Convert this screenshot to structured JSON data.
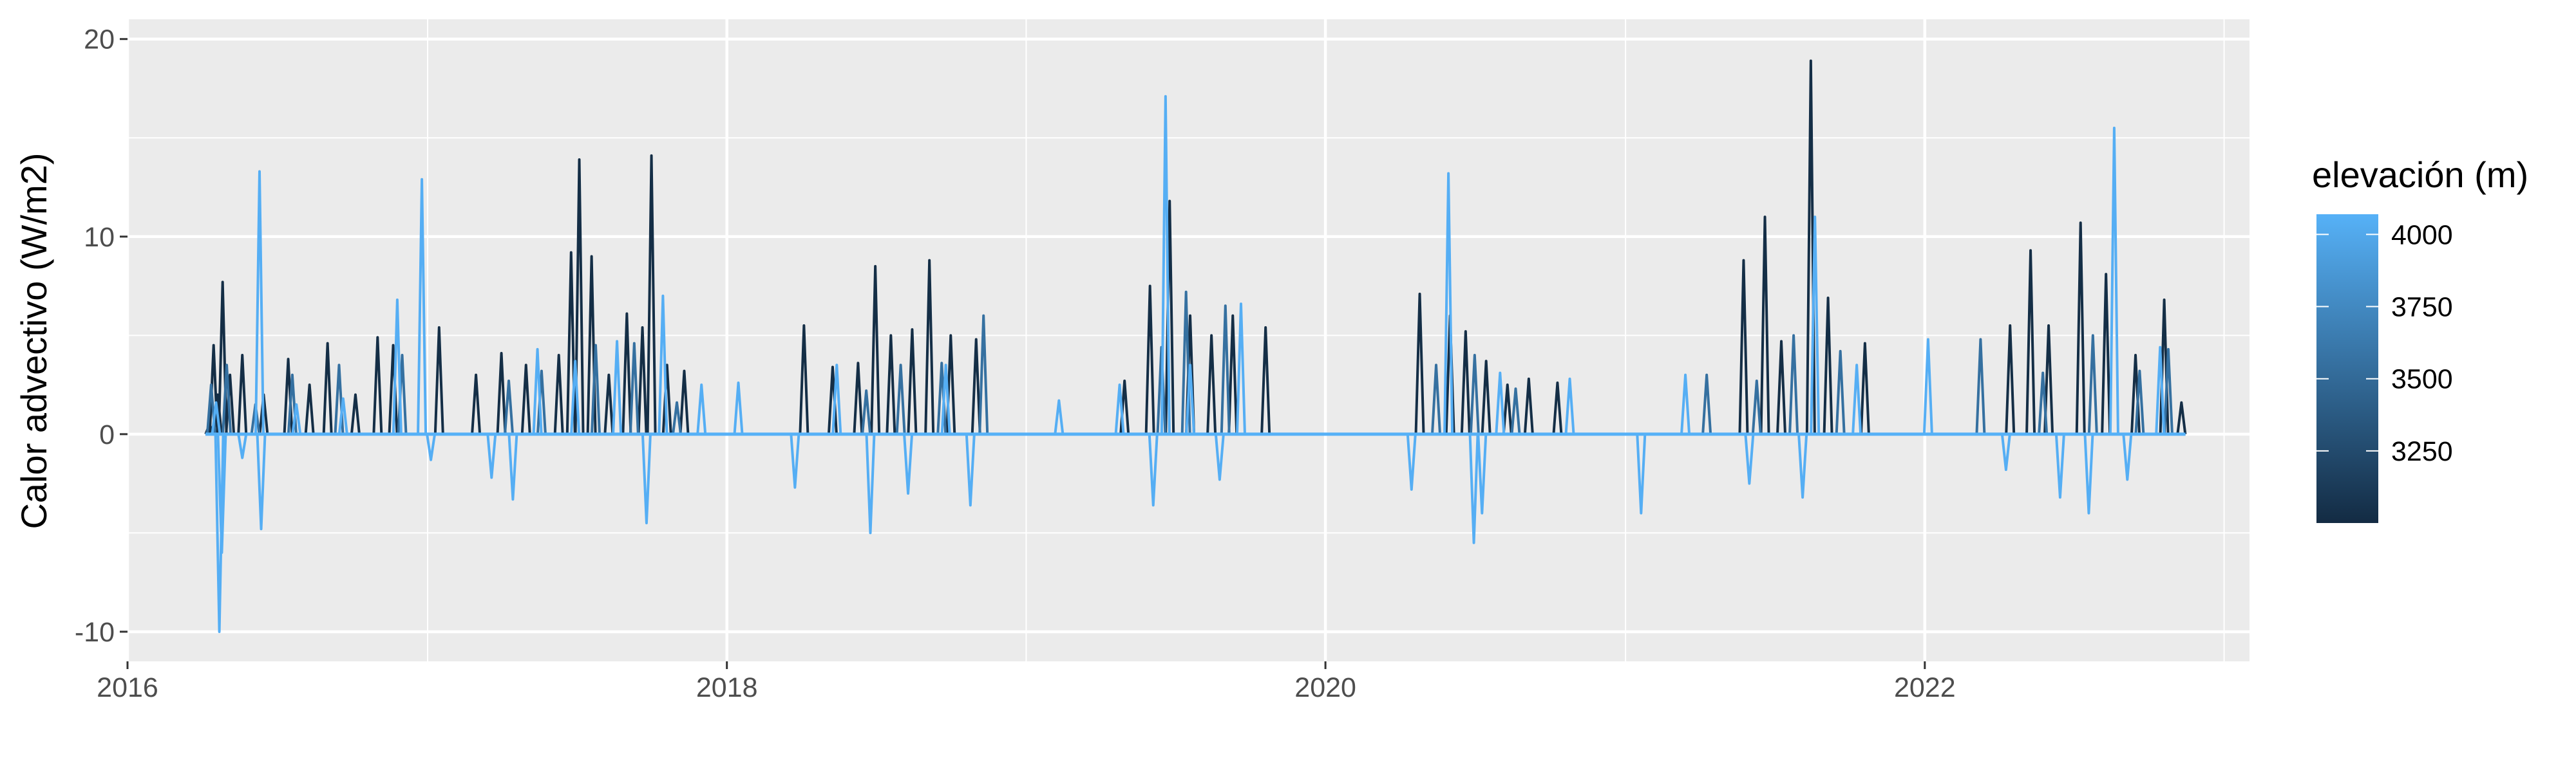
{
  "colors": {
    "panel_bg": "#EBEBEB",
    "grid_major": "#FFFFFF",
    "tick_text": "#4D4D4D",
    "elev_low": "#132B43",
    "elev_high": "#56B1F7"
  },
  "chart_data": {
    "type": "line",
    "title": "",
    "xlabel": "",
    "ylabel": "Calor advectivo (W/m2)",
    "x_ticks": [
      "2016",
      "2018",
      "2020",
      "2022"
    ],
    "y_ticks": [
      "-10",
      "0",
      "10",
      "20"
    ],
    "xlim": [
      "2016-01-01",
      "2023-02-01"
    ],
    "ylim": [
      -11.5,
      21
    ],
    "grid": true,
    "color_scale": {
      "title": "elevación (m)",
      "breaks": [
        "4000",
        "3750",
        "3500",
        "3250"
      ],
      "break_values": [
        4000,
        3750,
        3500,
        3250
      ],
      "range": [
        3000,
        4070
      ],
      "legend_position": "right"
    },
    "series": [
      {
        "elevation": 3020,
        "points": [
          [
            "2016-04-10",
            0.5
          ],
          [
            "2016-04-15",
            4.5
          ],
          [
            "2016-04-20",
            2.0
          ],
          [
            "2016-04-26",
            7.7
          ],
          [
            "2016-05-05",
            3.0
          ],
          [
            "2016-05-20",
            4.0
          ],
          [
            "2016-06-15",
            2.0
          ],
          [
            "2016-07-15",
            3.8
          ],
          [
            "2016-08-10",
            2.5
          ],
          [
            "2016-09-01",
            4.6
          ],
          [
            "2016-10-05",
            2.0
          ],
          [
            "2016-11-01",
            4.9
          ],
          [
            "2016-11-20",
            4.5
          ],
          [
            "2017-01-15",
            5.4
          ],
          [
            "2017-03-01",
            3.0
          ],
          [
            "2017-04-01",
            4.1
          ],
          [
            "2017-05-01",
            3.5
          ],
          [
            "2017-06-10",
            4.0
          ],
          [
            "2017-06-25",
            9.2
          ],
          [
            "2017-07-05",
            13.9
          ],
          [
            "2017-07-20",
            9.0
          ],
          [
            "2017-08-10",
            3.0
          ],
          [
            "2017-09-01",
            6.1
          ],
          [
            "2017-09-20",
            5.4
          ],
          [
            "2017-10-01",
            14.1
          ],
          [
            "2017-10-20",
            3.5
          ],
          [
            "2017-11-10",
            3.2
          ],
          [
            "2018-04-05",
            5.5
          ],
          [
            "2018-05-10",
            3.4
          ],
          [
            "2018-06-10",
            3.6
          ],
          [
            "2018-07-01",
            8.5
          ],
          [
            "2018-07-20",
            5.0
          ],
          [
            "2018-08-15",
            5.3
          ],
          [
            "2018-09-05",
            8.8
          ],
          [
            "2018-10-01",
            5.0
          ],
          [
            "2018-11-01",
            4.8
          ],
          [
            "2019-05-01",
            2.7
          ],
          [
            "2019-06-01",
            7.5
          ],
          [
            "2019-06-25",
            11.8
          ],
          [
            "2019-07-20",
            6.0
          ],
          [
            "2019-08-15",
            5.0
          ],
          [
            "2019-09-10",
            6.0
          ],
          [
            "2019-10-20",
            5.4
          ],
          [
            "2020-04-25",
            7.1
          ],
          [
            "2020-06-01",
            6.0
          ],
          [
            "2020-06-20",
            5.2
          ],
          [
            "2020-07-15",
            3.7
          ],
          [
            "2020-08-10",
            2.5
          ],
          [
            "2020-09-05",
            2.8
          ],
          [
            "2020-10-10",
            2.6
          ],
          [
            "2021-05-25",
            8.8
          ],
          [
            "2021-06-20",
            11.0
          ],
          [
            "2021-07-10",
            4.7
          ],
          [
            "2021-08-15",
            18.9
          ],
          [
            "2021-09-05",
            6.9
          ],
          [
            "2021-10-20",
            4.6
          ],
          [
            "2022-04-15",
            5.5
          ],
          [
            "2022-05-10",
            9.3
          ],
          [
            "2022-06-01",
            5.5
          ],
          [
            "2022-07-10",
            10.7
          ],
          [
            "2022-08-10",
            8.1
          ],
          [
            "2022-09-15",
            4.0
          ],
          [
            "2022-10-20",
            6.8
          ],
          [
            "2022-11-10",
            1.6
          ]
        ]
      },
      {
        "elevation": 3550,
        "points": [
          [
            "2016-04-12",
            2.5
          ],
          [
            "2016-05-01",
            3.5
          ],
          [
            "2016-06-05",
            1.5
          ],
          [
            "2016-07-20",
            3.0
          ],
          [
            "2016-09-15",
            3.5
          ],
          [
            "2016-12-01",
            4.0
          ],
          [
            "2017-04-10",
            2.7
          ],
          [
            "2017-05-20",
            3.2
          ],
          [
            "2017-07-25",
            4.5
          ],
          [
            "2017-09-10",
            4.6
          ],
          [
            "2017-11-01",
            1.6
          ],
          [
            "2018-06-20",
            2.2
          ],
          [
            "2018-08-01",
            3.5
          ],
          [
            "2018-09-20",
            3.6
          ],
          [
            "2018-11-10",
            6.0
          ],
          [
            "2019-06-15",
            4.4
          ],
          [
            "2019-07-15",
            7.2
          ],
          [
            "2019-09-01",
            6.5
          ],
          [
            "2020-05-15",
            3.5
          ],
          [
            "2020-07-01",
            4.0
          ],
          [
            "2020-08-20",
            2.3
          ],
          [
            "2021-04-10",
            3.0
          ],
          [
            "2021-06-10",
            2.7
          ],
          [
            "2021-07-25",
            5.0
          ],
          [
            "2021-09-20",
            4.2
          ],
          [
            "2022-03-10",
            4.8
          ],
          [
            "2022-05-25",
            3.1
          ],
          [
            "2022-07-25",
            5.0
          ],
          [
            "2022-09-20",
            3.2
          ],
          [
            "2022-10-25",
            4.3
          ]
        ]
      },
      {
        "elevation": 4050,
        "points": [
          [
            "2016-04-18",
            1.6
          ],
          [
            "2016-04-22",
            -10.0
          ],
          [
            "2016-04-25",
            -6.0
          ],
          [
            "2016-05-20",
            -1.2
          ],
          [
            "2016-06-10",
            13.3
          ],
          [
            "2016-06-12",
            -4.8
          ],
          [
            "2016-07-25",
            1.5
          ],
          [
            "2016-09-20",
            1.8
          ],
          [
            "2016-11-25",
            6.8
          ],
          [
            "2016-12-25",
            12.9
          ],
          [
            "2017-01-05",
            -1.3
          ],
          [
            "2017-03-20",
            -2.2
          ],
          [
            "2017-04-15",
            -3.3
          ],
          [
            "2017-05-15",
            4.3
          ],
          [
            "2017-06-30",
            3.7
          ],
          [
            "2017-08-20",
            4.7
          ],
          [
            "2017-09-25",
            -4.5
          ],
          [
            "2017-10-15",
            7.0
          ],
          [
            "2017-12-01",
            2.5
          ],
          [
            "2018-01-15",
            2.6
          ],
          [
            "2018-03-25",
            -2.7
          ],
          [
            "2018-05-15",
            3.5
          ],
          [
            "2018-06-25",
            -5.0
          ],
          [
            "2018-08-10",
            -3.0
          ],
          [
            "2018-09-25",
            3.5
          ],
          [
            "2018-10-25",
            -3.6
          ],
          [
            "2019-02-10",
            1.7
          ],
          [
            "2019-04-25",
            2.5
          ],
          [
            "2019-06-05",
            -3.6
          ],
          [
            "2019-06-20",
            17.1
          ],
          [
            "2019-07-20",
            3.5
          ],
          [
            "2019-08-25",
            -2.3
          ],
          [
            "2019-09-20",
            6.6
          ],
          [
            "2020-04-15",
            -2.8
          ],
          [
            "2020-05-30",
            13.2
          ],
          [
            "2020-06-30",
            -5.5
          ],
          [
            "2020-07-10",
            -4.0
          ],
          [
            "2020-08-01",
            3.1
          ],
          [
            "2020-10-25",
            2.8
          ],
          [
            "2021-01-20",
            -4.0
          ],
          [
            "2021-03-15",
            3.0
          ],
          [
            "2021-06-01",
            -2.5
          ],
          [
            "2021-08-05",
            -3.2
          ],
          [
            "2021-08-20",
            11.0
          ],
          [
            "2021-10-10",
            3.5
          ],
          [
            "2022-01-05",
            4.8
          ],
          [
            "2022-04-10",
            -1.8
          ],
          [
            "2022-06-15",
            -3.2
          ],
          [
            "2022-07-20",
            -4.0
          ],
          [
            "2022-08-20",
            15.5
          ],
          [
            "2022-09-05",
            -2.3
          ],
          [
            "2022-10-15",
            4.4
          ]
        ]
      }
    ]
  }
}
